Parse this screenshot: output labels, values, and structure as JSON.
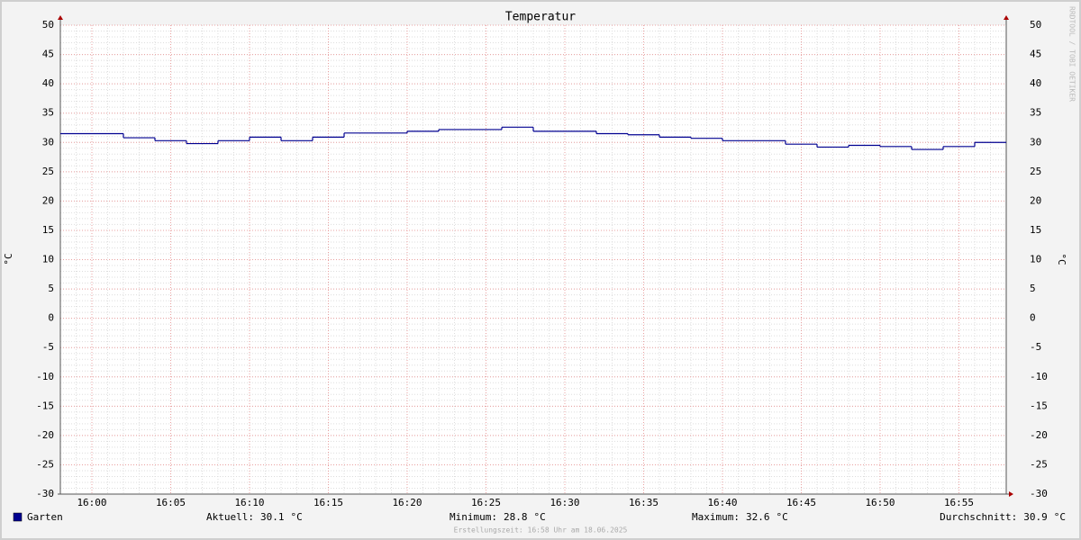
{
  "chart_data": {
    "type": "line",
    "step": true,
    "title": "Temperatur",
    "y_label": "°C",
    "watermark": "RRDTOOL / TOBI OETIKER",
    "x": [
      "15:58",
      "16:02",
      "16:04",
      "16:06",
      "16:08",
      "16:10",
      "16:12",
      "16:14",
      "16:16",
      "16:20",
      "16:22",
      "16:26",
      "16:28",
      "16:32",
      "16:34",
      "16:36",
      "16:38",
      "16:40",
      "16:44",
      "16:46",
      "16:48",
      "16:50",
      "16:52",
      "16:54",
      "16:56"
    ],
    "series": [
      {
        "name": "Garten",
        "color": "#000090",
        "values": [
          31.5,
          30.8,
          30.3,
          29.8,
          30.3,
          30.9,
          30.3,
          30.9,
          31.6,
          31.9,
          32.2,
          32.6,
          31.9,
          31.5,
          31.3,
          30.9,
          30.7,
          30.3,
          29.7,
          29.2,
          29.5,
          29.3,
          28.8,
          29.3,
          30.0
        ]
      }
    ],
    "xlim": [
      "15:58",
      "16:58"
    ],
    "xticks": [
      "16:00",
      "16:05",
      "16:10",
      "16:15",
      "16:20",
      "16:25",
      "16:30",
      "16:35",
      "16:40",
      "16:45",
      "16:50",
      "16:55"
    ],
    "ylim": [
      -30,
      50
    ],
    "yticks": [
      -30,
      -25,
      -20,
      -15,
      -10,
      -5,
      0,
      5,
      10,
      15,
      20,
      25,
      30,
      35,
      40,
      45,
      50
    ],
    "grid": true,
    "stats": [
      {
        "label": "Aktuell:",
        "value": 30.1,
        "unit": "°C"
      },
      {
        "label": "Minimum:",
        "value": 28.8,
        "unit": "°C"
      },
      {
        "label": "Maximum:",
        "value": 32.6,
        "unit": "°C"
      },
      {
        "label": "Durchschnitt:",
        "value": 30.9,
        "unit": "°C"
      }
    ],
    "footer": "Erstellungszeit: 16:58 Uhr am 18.06.2025"
  }
}
